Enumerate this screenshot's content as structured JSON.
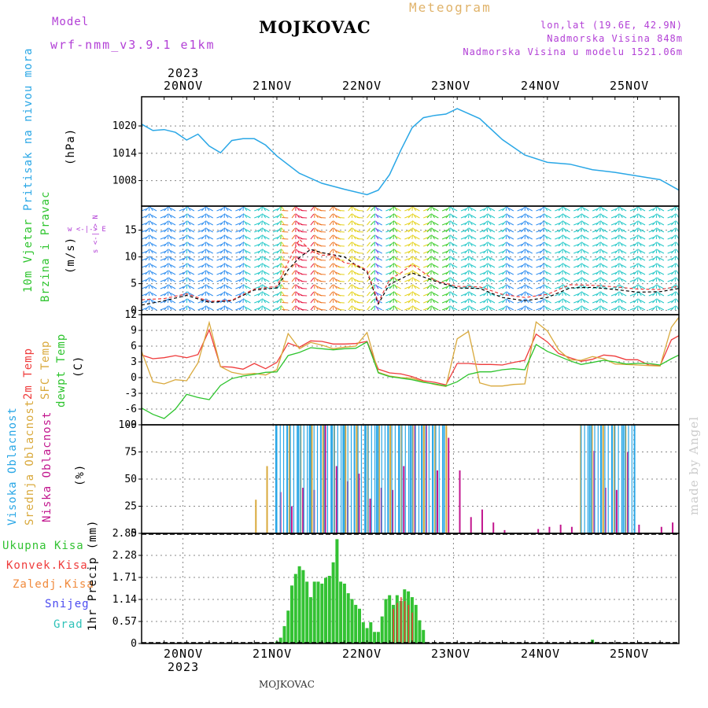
{
  "header": {
    "model_label": "Model",
    "model_name": "wrf-nmm_v3.9.1  e1km",
    "station": "MOJKOVAC",
    "meteogram": "Meteogram",
    "lonlat": "lon,lat (19.6E, 42.9N)",
    "altitude": "Nadmorska Visina 848m",
    "model_altitude": "Nadmorska Visina u modelu 1521.06m",
    "footer_station": "MOJKOVAC",
    "credit": "made by Angel"
  },
  "axis_top": {
    "year": "2023",
    "days": [
      "20NOV",
      "21NOV",
      "22NOV",
      "23NOV",
      "24NOV",
      "25NOV"
    ]
  },
  "axis_bottom": {
    "year": "2023",
    "days": [
      "20NOV",
      "21NOV",
      "22NOV",
      "23NOV",
      "24NOV",
      "25NOV"
    ]
  },
  "panel_labels": {
    "pressure": {
      "name": "Pritisak na nivou mora",
      "unit": "(hPa)"
    },
    "wind": {
      "name1": "10m Vjetar",
      "name2": "Brzina i Pravac",
      "unit": "(m/s)",
      "compass": "w <-|-> E",
      "compass_v": "s <-|-> N"
    },
    "temp": {
      "t2m": "2m Temp",
      "sfc": "SFC Temp",
      "dew": "dewpt Temp",
      "unit": "(C)"
    },
    "cloud": {
      "high": "Visoka Oblacnost",
      "mid": "Srednja Oblacnost",
      "low": "Niska Oblacnost",
      "unit": "(%)"
    },
    "precip": {
      "total": "Ukupna Kisa",
      "conv": "Konvek.Kisa",
      "frozen": "Zaledj.Kisa",
      "snow": "Snijeg",
      "grad": "Grad",
      "unit": "1hr Precip (mm)"
    }
  },
  "colors": {
    "pressure": "#2aa7e6",
    "t2m": "#ef3b3b",
    "sfc": "#d9a93c",
    "dew": "#2ec42e",
    "cloud_high": "#2aa7e6",
    "cloud_mid": "#d9a93c",
    "cloud_low": "#c2168e",
    "precip_total": "#33c233",
    "precip_conv": "#ef3b3b",
    "precip_frozen": "#f08a3c",
    "snow": "#4a4af0",
    "grad": "#2ec2b8",
    "purple_text": "#b23fd6",
    "meteogram_text": "#e0b36a",
    "credit_text": "#cccccc"
  },
  "chart_data": [
    {
      "type": "line",
      "panel": "pressure",
      "title": "",
      "ylabel": "(hPa)",
      "ylim": [
        1002.4,
        1026.4
      ],
      "yticks": [
        "1008",
        "1014",
        "1020"
      ],
      "x_hours": [
        0,
        3,
        6,
        9,
        12,
        15,
        18,
        21,
        24,
        27,
        30,
        33,
        36,
        42,
        48,
        54,
        60,
        63,
        66,
        69,
        72,
        75,
        78,
        81,
        84,
        90,
        96,
        102,
        108,
        114,
        120,
        126,
        132,
        138,
        143
      ],
      "series": [
        {
          "name": "",
          "color": "#2aa7e6",
          "values": [
            1020.4,
            1019.0,
            1019.2,
            1018.6,
            1016.9,
            1018.2,
            1015.6,
            1014.1,
            1016.8,
            1017.2,
            1017.2,
            1015.8,
            1013.4,
            1009.6,
            1007.4,
            1006.1,
            1004.9,
            1005.9,
            1009.3,
            1014.7,
            1019.6,
            1021.8,
            1022.3,
            1022.6,
            1023.8,
            1021.6,
            1017.0,
            1013.6,
            1012.0,
            1011.6,
            1010.4,
            1009.8,
            1009.0,
            1008.2,
            1005.9
          ]
        }
      ]
    },
    {
      "type": "line",
      "panel": "wind",
      "title": "",
      "ylabel": "(m/s)",
      "ylim": [
        -0.8,
        19.5
      ],
      "yticks": [
        "0",
        "5",
        "10",
        "15"
      ],
      "x_hours": [
        0,
        6,
        12,
        18,
        24,
        30,
        36,
        39,
        42,
        45,
        48,
        51,
        54,
        57,
        60,
        63,
        66,
        69,
        72,
        78,
        84,
        90,
        96,
        102,
        108,
        114,
        120,
        126,
        132,
        138,
        143
      ],
      "series": [
        {
          "name": "",
          "color": "#000000",
          "dashed": true,
          "values": [
            1.0,
            1.8,
            2.8,
            1.5,
            1.8,
            3.8,
            4.2,
            7.6,
            9.9,
            11.4,
            10.8,
            10.4,
            10.0,
            8.5,
            7.2,
            1.2,
            4.9,
            5.9,
            7.0,
            5.5,
            4.2,
            4.1,
            2.4,
            1.8,
            2.4,
            4.2,
            4.3,
            3.9,
            3.4,
            3.5,
            4.1
          ]
        },
        {
          "name": "",
          "color": "#ef3b3b",
          "dashed": true,
          "values": [
            2.0,
            2.2,
            3.1,
            1.7,
            1.9,
            4.0,
            4.5,
            9.0,
            13.3,
            11.1,
            10.3,
            10.4,
            8.9,
            8.6,
            7.5,
            1.5,
            5.8,
            7.0,
            8.6,
            5.6,
            4.5,
            4.4,
            3.0,
            2.4,
            3.0,
            4.8,
            4.7,
            4.4,
            4.0,
            3.9,
            4.5
          ]
        }
      ]
    },
    {
      "type": "line",
      "panel": "temperature",
      "title": "",
      "ylabel": "(C)",
      "ylim": [
        -9,
        12
      ],
      "yticks": [
        "-9",
        "-6",
        "-3",
        "0",
        "3",
        "6",
        "9",
        "12"
      ],
      "x_hours": [
        0,
        3,
        6,
        9,
        12,
        15,
        18,
        21,
        24,
        27,
        30,
        33,
        36,
        39,
        42,
        45,
        48,
        51,
        54,
        57,
        60,
        63,
        66,
        69,
        72,
        75,
        78,
        81,
        84,
        87,
        90,
        93,
        96,
        99,
        102,
        105,
        108,
        111,
        114,
        117,
        120,
        123,
        126,
        129,
        132,
        135,
        138,
        141,
        143
      ],
      "series": [
        {
          "name": "2m Temp",
          "color": "#ef3b3b",
          "values": [
            4.3,
            3.6,
            3.8,
            4.2,
            3.8,
            4.4,
            9.1,
            2.1,
            2.0,
            1.6,
            2.7,
            1.7,
            2.9,
            6.6,
            5.8,
            7.0,
            6.9,
            6.4,
            6.4,
            6.5,
            6.9,
            1.6,
            0.9,
            0.7,
            0.2,
            -0.6,
            -0.9,
            -1.4,
            2.7,
            2.7,
            2.5,
            2.5,
            2.4,
            2.9,
            3.3,
            8.3,
            6.8,
            4.6,
            3.8,
            3.1,
            3.5,
            4.3,
            4.1,
            3.4,
            3.4,
            2.4,
            2.3,
            7.2,
            8.0
          ]
        },
        {
          "name": "SFC Temp",
          "color": "#d9a93c",
          "values": [
            5.0,
            -0.8,
            -1.2,
            -0.4,
            -0.6,
            2.8,
            10.5,
            2.1,
            1.0,
            0.6,
            0.8,
            0.5,
            1.5,
            8.4,
            5.5,
            6.7,
            6.2,
            5.5,
            5.8,
            6.0,
            8.6,
            1.0,
            0.3,
            0.0,
            -0.1,
            -0.8,
            -1.3,
            -1.7,
            7.4,
            8.8,
            -1.0,
            -1.6,
            -1.6,
            -1.3,
            -1.2,
            10.6,
            8.9,
            5.3,
            3.4,
            3.3,
            4.0,
            3.6,
            2.6,
            2.5,
            2.4,
            2.3,
            2.2,
            9.6,
            11.5
          ]
        },
        {
          "name": "dewpt Temp",
          "color": "#2ec42e",
          "values": [
            -5.8,
            -7.0,
            -7.8,
            -6.0,
            -3.2,
            -3.8,
            -4.2,
            -1.5,
            -0.2,
            0.3,
            0.6,
            1.0,
            1.1,
            4.2,
            4.8,
            5.7,
            5.5,
            5.3,
            5.5,
            5.6,
            6.8,
            0.9,
            0.2,
            -0.1,
            -0.4,
            -0.9,
            -1.2,
            -1.6,
            -0.8,
            0.6,
            1.1,
            1.1,
            1.5,
            1.7,
            1.5,
            6.3,
            5.0,
            4.1,
            3.2,
            2.5,
            2.9,
            3.3,
            3.0,
            2.6,
            2.7,
            2.7,
            2.4,
            3.6,
            4.3
          ]
        }
      ]
    },
    {
      "type": "bar",
      "panel": "cloud",
      "title": "",
      "ylabel": "(%)",
      "ylim": [
        0,
        100
      ],
      "yticks": [
        "0",
        "25",
        "50",
        "75",
        "100"
      ],
      "series": [
        {
          "name": "Visoka Oblacnost",
          "color": "#2aa7e6",
          "segments": [
            {
              "from": 36,
              "to": 81,
              "value": 100
            },
            {
              "from": 117,
              "to": 131,
              "value": 100
            }
          ],
          "values": [
            0,
            0,
            0,
            0,
            0,
            0,
            0,
            0,
            0,
            0,
            0,
            0,
            100,
            100,
            100,
            100,
            100,
            100,
            100,
            100,
            100,
            100,
            100,
            100,
            100,
            100,
            100,
            100,
            0,
            0,
            0,
            0,
            0,
            0,
            0,
            0,
            0,
            0,
            0,
            0,
            100,
            100,
            100,
            100,
            100,
            0,
            0,
            0
          ]
        },
        {
          "name": "Srednja Oblacnost",
          "color": "#d9a93c",
          "values": [
            0,
            0,
            0,
            0,
            0,
            0,
            0,
            0,
            0,
            0,
            31,
            62,
            0,
            100,
            100,
            100,
            100,
            100,
            100,
            100,
            100,
            100,
            100,
            100,
            100,
            100,
            100,
            100,
            0,
            0,
            0,
            0,
            0,
            0,
            0,
            0,
            0,
            0,
            0,
            100,
            100,
            100,
            100,
            100,
            0,
            0,
            0,
            0
          ]
        },
        {
          "name": "Niska Oblacnost",
          "color": "#c2168e",
          "values": [
            0,
            0,
            0,
            0,
            0,
            0,
            0,
            0,
            0,
            0,
            0,
            0,
            38,
            25,
            42,
            40,
            100,
            62,
            48,
            55,
            32,
            42,
            40,
            62,
            100,
            100,
            58,
            88,
            58,
            15,
            22,
            10,
            3,
            0,
            0,
            4,
            6,
            8,
            6,
            0,
            76,
            42,
            40,
            75,
            8,
            0,
            6,
            10
          ]
        }
      ]
    },
    {
      "type": "bar",
      "panel": "precip",
      "title": "",
      "ylabel": "1hr Precip (mm)",
      "ylim": [
        0,
        2.85
      ],
      "yticks": [
        "0",
        "0.57",
        "1.14",
        "1.71",
        "2.28",
        "2.85"
      ],
      "x_hours": [
        36,
        37,
        38,
        39,
        40,
        41,
        42,
        43,
        44,
        45,
        46,
        47,
        48,
        49,
        50,
        51,
        52,
        53,
        54,
        55,
        56,
        57,
        58,
        59,
        60,
        61,
        62,
        63,
        64,
        65,
        66,
        67,
        68,
        69,
        70,
        71,
        72,
        73,
        74,
        75,
        120
      ],
      "series": [
        {
          "name": "Ukupna Kisa",
          "color": "#33c233",
          "values": [
            0.05,
            0.15,
            0.45,
            0.85,
            1.5,
            1.8,
            2.0,
            1.9,
            1.6,
            1.2,
            1.6,
            1.6,
            1.55,
            1.7,
            1.75,
            2.1,
            2.7,
            1.6,
            1.55,
            1.3,
            1.15,
            1.0,
            0.9,
            0.55,
            0.4,
            0.55,
            0.3,
            0.3,
            0.7,
            1.15,
            1.25,
            1.0,
            1.25,
            1.1,
            1.4,
            1.35,
            1.2,
            1.0,
            0.6,
            0.35,
            0.1
          ]
        },
        {
          "name": "Konvek.Kisa",
          "color": "#ef3b3b",
          "values": [
            0,
            0,
            0,
            0,
            0,
            0,
            0,
            0,
            0,
            0,
            0,
            0,
            0,
            0,
            0,
            0,
            0,
            0,
            0,
            0,
            0,
            0,
            0,
            0,
            0,
            0,
            0,
            0,
            0,
            0,
            0,
            0.9,
            1.05,
            1.2,
            1.1,
            1.0,
            0.8,
            0,
            0,
            0,
            0
          ]
        }
      ]
    }
  ]
}
